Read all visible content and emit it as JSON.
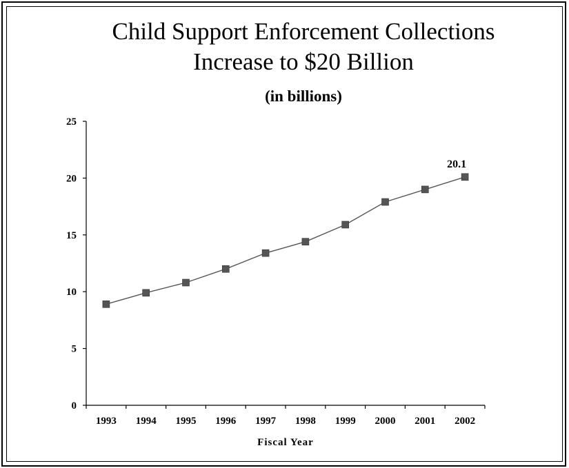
{
  "chart_data": {
    "type": "line",
    "title_line1": "Child Support Enforcement Collections",
    "title_line2": "Increase to $20 Billion",
    "subtitle": "(in billions)",
    "xlabel": "Fiscal Year",
    "ylabel": "",
    "categories": [
      "1993",
      "1994",
      "1995",
      "1996",
      "1997",
      "1998",
      "1999",
      "2000",
      "2001",
      "2002"
    ],
    "series": [
      {
        "values": [
          8.9,
          9.9,
          10.8,
          12.0,
          13.4,
          14.4,
          15.9,
          17.9,
          19.0,
          20.1
        ]
      }
    ],
    "ylim": [
      0,
      25
    ],
    "yticks": [
      "0",
      "5",
      "10",
      "15",
      "20",
      "25"
    ],
    "data_labels": [
      {
        "index": 9,
        "text": "20.1"
      }
    ],
    "grid": false,
    "legend": "none",
    "line_color": "#555555",
    "marker_color": "#555555"
  }
}
